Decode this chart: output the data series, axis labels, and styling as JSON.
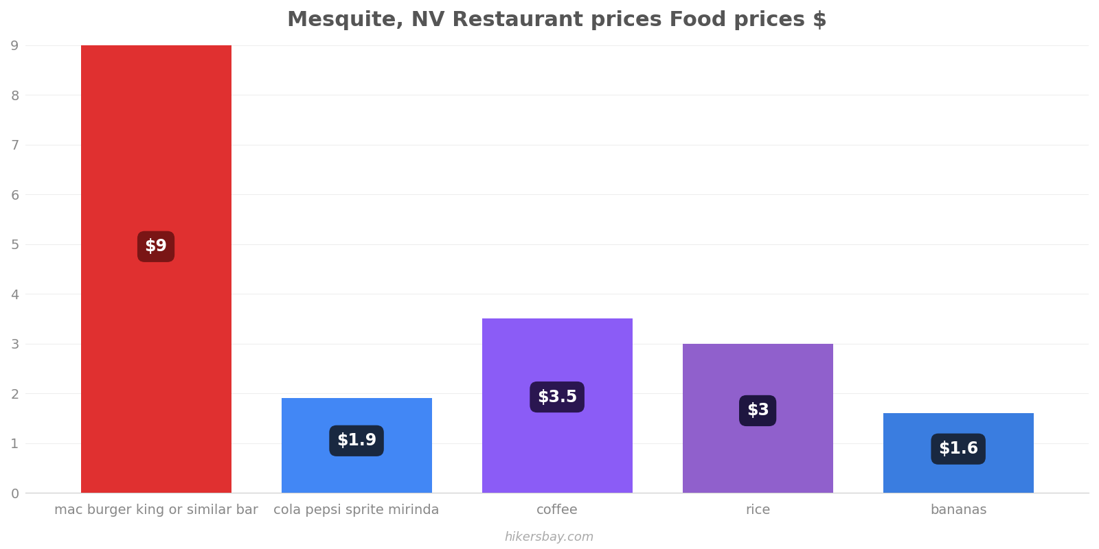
{
  "title": "Mesquite, NV Restaurant prices Food prices $",
  "categories": [
    "mac burger king or similar bar",
    "cola pepsi sprite mirinda",
    "coffee",
    "rice",
    "bananas"
  ],
  "values": [
    9,
    1.9,
    3.5,
    3.0,
    1.6
  ],
  "bar_colors": [
    "#e03030",
    "#4287f5",
    "#8b5cf6",
    "#9060cc",
    "#3a7de0"
  ],
  "label_texts": [
    "$9",
    "$1.9",
    "$3.5",
    "$3",
    "$1.6"
  ],
  "label_bg_colors": [
    "#7a1515",
    "#192840",
    "#2a1650",
    "#1e1640",
    "#192840"
  ],
  "ylim": [
    0,
    9
  ],
  "yticks": [
    0,
    1,
    2,
    3,
    4,
    5,
    6,
    7,
    8,
    9
  ],
  "title_fontsize": 22,
  "tick_fontsize": 14,
  "label_fontsize": 17,
  "watermark": "hikersbay.com",
  "background_color": "#ffffff",
  "grid_color": "#eeeeee"
}
